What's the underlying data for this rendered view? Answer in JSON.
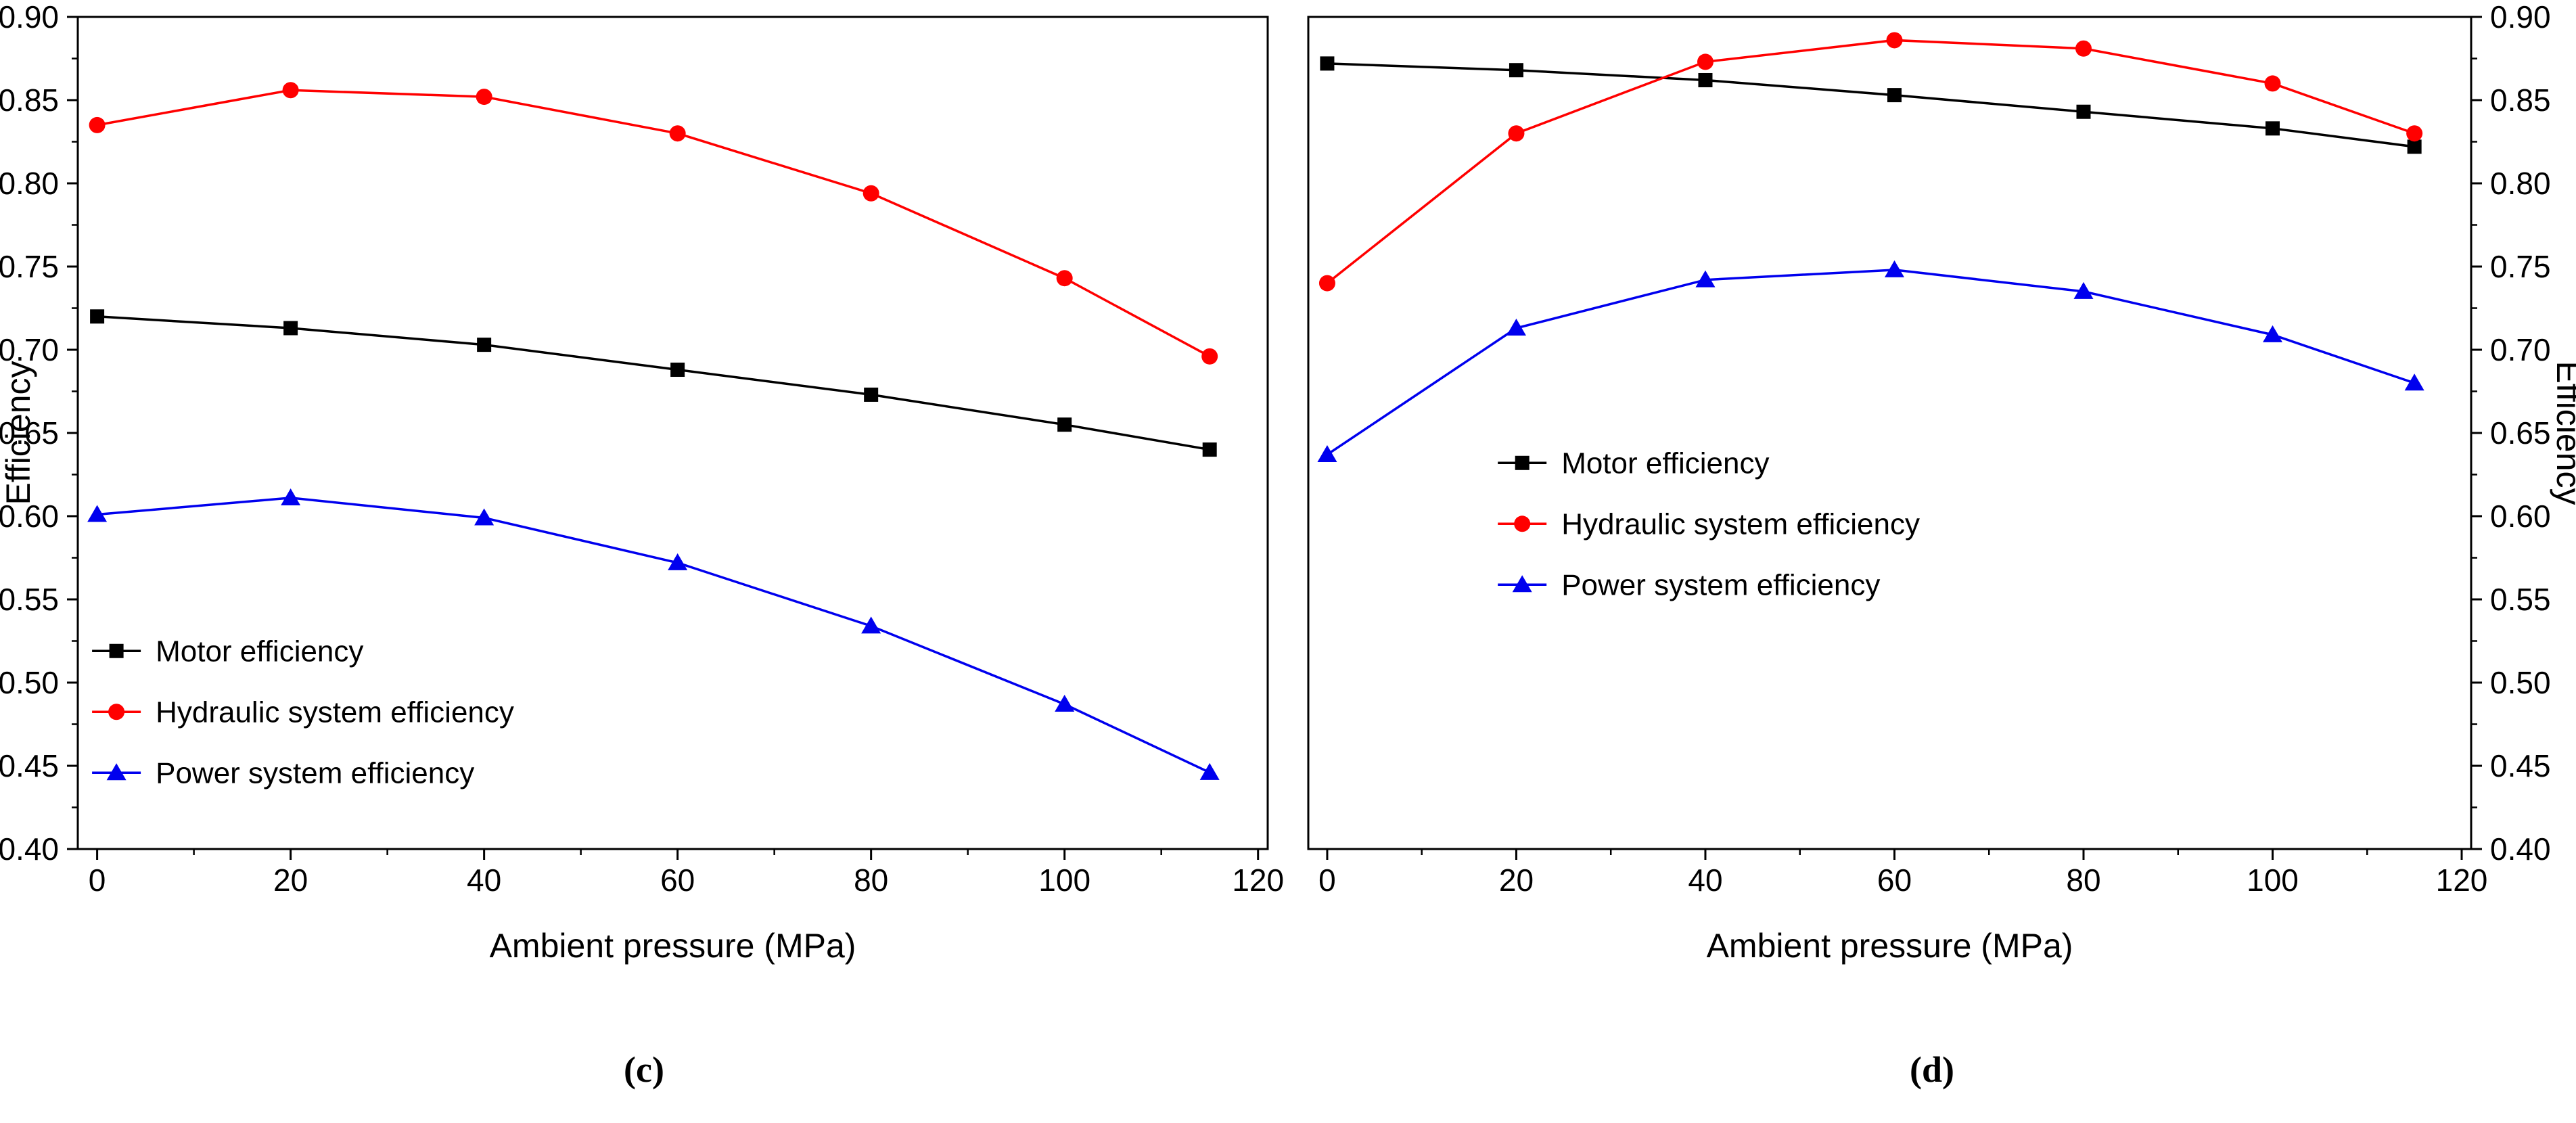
{
  "chart_data": [
    {
      "type": "line",
      "caption": "(c)",
      "title": "",
      "xlabel": "Ambient pressure (MPa)",
      "ylabel": "Efficiency",
      "x": [
        0,
        20,
        40,
        60,
        80,
        100,
        115
      ],
      "xlim": [
        -2,
        121
      ],
      "ylim": [
        0.4,
        0.9
      ],
      "x_ticks": [
        0,
        20,
        40,
        60,
        80,
        100,
        120
      ],
      "x_tick_labels": [
        "0",
        "20",
        "40",
        "60",
        "80",
        "100",
        "120"
      ],
      "x_minor_ticks": [
        10,
        30,
        50,
        70,
        90,
        110
      ],
      "y_ticks": [
        0.4,
        0.45,
        0.5,
        0.55,
        0.6,
        0.65,
        0.7,
        0.75,
        0.8,
        0.85,
        0.9
      ],
      "y_tick_labels": [
        "0.40",
        "0.45",
        "0.50",
        "0.55",
        "0.60",
        "0.65",
        "0.70",
        "0.75",
        "0.80",
        "0.85",
        "0.90"
      ],
      "y_minor_ticks": [
        0.425,
        0.475,
        0.525,
        0.575,
        0.625,
        0.675,
        0.725,
        0.775,
        0.825,
        0.875
      ],
      "grid": false,
      "legend_position": "inside-lower-left",
      "legend_pos": {
        "x": 0.012,
        "y": 0.762
      },
      "layout": {
        "y_axis_side": "left"
      },
      "series": [
        {
          "name": "Motor efficiency",
          "color": "#000000",
          "marker": "square",
          "values": [
            0.72,
            0.713,
            0.703,
            0.688,
            0.673,
            0.655,
            0.64
          ]
        },
        {
          "name": "Hydraulic system efficiency",
          "color": "#ff0000",
          "marker": "circle",
          "values": [
            0.835,
            0.856,
            0.852,
            0.83,
            0.794,
            0.743,
            0.696
          ]
        },
        {
          "name": "Power system efficiency",
          "color": "#0000ee",
          "marker": "triangle",
          "values": [
            0.601,
            0.611,
            0.599,
            0.572,
            0.534,
            0.487,
            0.446
          ]
        }
      ]
    },
    {
      "type": "line",
      "caption": "(d)",
      "title": "",
      "xlabel": "Ambient pressure (MPa)",
      "ylabel": "Efficiency",
      "x": [
        0,
        20,
        40,
        60,
        80,
        100,
        115
      ],
      "xlim": [
        -2,
        121
      ],
      "ylim": [
        0.4,
        0.9
      ],
      "x_ticks": [
        0,
        20,
        40,
        60,
        80,
        100,
        120
      ],
      "x_tick_labels": [
        "0",
        "20",
        "40",
        "60",
        "80",
        "100",
        "120"
      ],
      "x_minor_ticks": [
        10,
        30,
        50,
        70,
        90,
        110
      ],
      "y_ticks": [
        0.4,
        0.45,
        0.5,
        0.55,
        0.6,
        0.65,
        0.7,
        0.75,
        0.8,
        0.85,
        0.9
      ],
      "y_tick_labels": [
        "0.40",
        "0.45",
        "0.50",
        "0.55",
        "0.60",
        "0.65",
        "0.70",
        "0.75",
        "0.80",
        "0.85",
        "0.90"
      ],
      "y_minor_ticks": [
        0.425,
        0.475,
        0.525,
        0.575,
        0.625,
        0.675,
        0.725,
        0.775,
        0.825,
        0.875
      ],
      "grid": false,
      "legend_position": "inside-center",
      "legend_pos": {
        "x": 0.163,
        "y": 0.536
      },
      "layout": {
        "y_axis_side": "right"
      },
      "series": [
        {
          "name": "Motor efficiency",
          "color": "#000000",
          "marker": "square",
          "values": [
            0.872,
            0.868,
            0.862,
            0.853,
            0.843,
            0.833,
            0.822
          ]
        },
        {
          "name": "Hydraulic system efficiency",
          "color": "#ff0000",
          "marker": "circle",
          "values": [
            0.74,
            0.83,
            0.873,
            0.886,
            0.881,
            0.86,
            0.83
          ]
        },
        {
          "name": "Power system efficiency",
          "color": "#0000ee",
          "marker": "triangle",
          "values": [
            0.637,
            0.713,
            0.742,
            0.748,
            0.735,
            0.709,
            0.68
          ]
        }
      ]
    }
  ]
}
